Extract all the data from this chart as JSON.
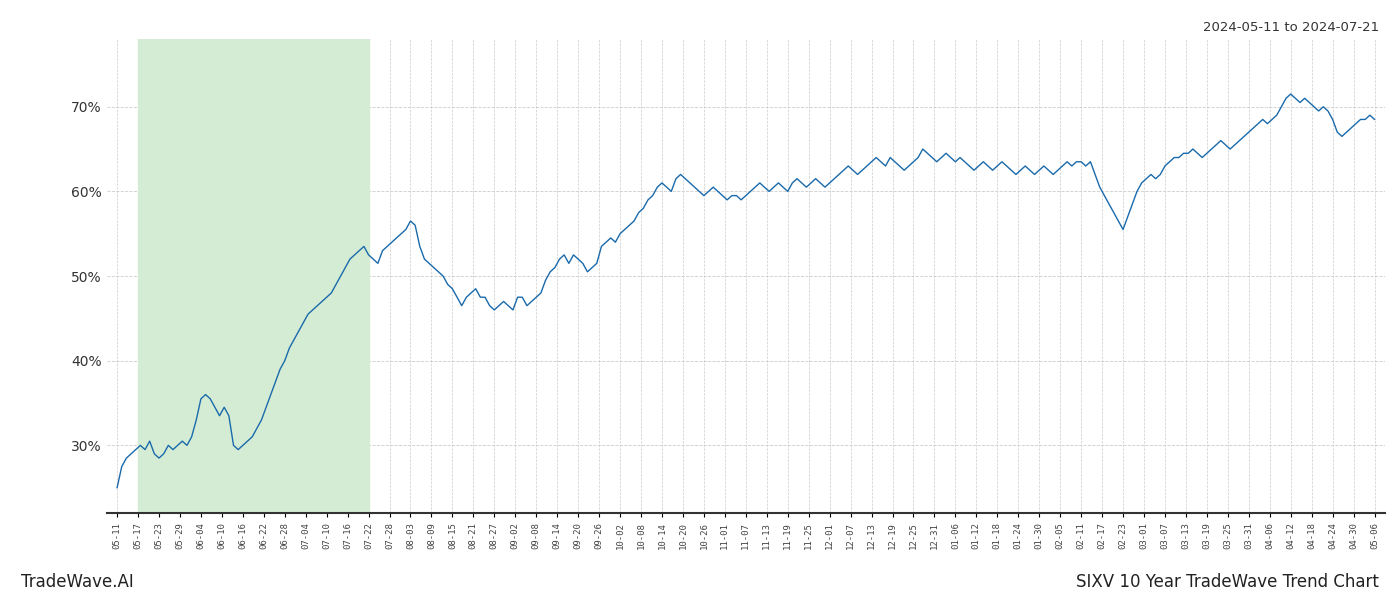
{
  "title_top_right": "2024-05-11 to 2024-07-21",
  "bottom_left": "TradeWave.AI",
  "bottom_right": "SIXV 10 Year TradeWave Trend Chart",
  "y_ticks": [
    30,
    40,
    50,
    60,
    70
  ],
  "y_tick_labels": [
    "30%",
    "40%",
    "50%",
    "60%",
    "70%"
  ],
  "ylim": [
    22,
    78
  ],
  "shaded_color": "#d4ecd4",
  "line_color": "#1a6aab",
  "background_color": "#ffffff",
  "grid_color": "#cccccc",
  "x_labels": [
    "05-11",
    "05-17",
    "05-23",
    "05-29",
    "06-04",
    "06-10",
    "06-16",
    "06-22",
    "06-28",
    "07-04",
    "07-10",
    "07-16",
    "07-22",
    "07-28",
    "08-03",
    "08-09",
    "08-15",
    "08-21",
    "08-27",
    "09-02",
    "09-08",
    "09-14",
    "09-20",
    "09-26",
    "10-02",
    "10-08",
    "10-14",
    "10-20",
    "10-26",
    "11-01",
    "11-07",
    "11-13",
    "11-19",
    "11-25",
    "12-01",
    "12-07",
    "12-13",
    "12-19",
    "12-25",
    "12-31",
    "01-06",
    "01-12",
    "01-18",
    "01-24",
    "01-30",
    "02-05",
    "02-11",
    "02-17",
    "02-23",
    "03-01",
    "03-07",
    "03-13",
    "03-19",
    "03-25",
    "03-31",
    "04-06",
    "04-12",
    "04-18",
    "04-24",
    "04-30",
    "05-06"
  ],
  "shade_start_label": "05-17",
  "shade_end_label": "07-22",
  "y_values": [
    25.0,
    27.5,
    28.5,
    29.0,
    29.5,
    30.0,
    29.5,
    30.5,
    29.0,
    28.5,
    29.0,
    30.0,
    29.5,
    30.0,
    30.5,
    30.0,
    31.0,
    33.0,
    35.5,
    36.0,
    35.5,
    34.5,
    33.5,
    34.5,
    33.5,
    30.0,
    29.5,
    30.0,
    30.5,
    31.0,
    32.0,
    33.0,
    34.5,
    36.0,
    37.5,
    39.0,
    40.0,
    41.5,
    42.5,
    43.5,
    44.5,
    45.5,
    46.0,
    46.5,
    47.0,
    47.5,
    48.0,
    49.0,
    50.0,
    51.0,
    52.0,
    52.5,
    53.0,
    53.5,
    52.5,
    52.0,
    51.5,
    53.0,
    53.5,
    54.0,
    54.5,
    55.0,
    55.5,
    56.5,
    56.0,
    53.5,
    52.0,
    51.5,
    51.0,
    50.5,
    50.0,
    49.0,
    48.5,
    47.5,
    46.5,
    47.5,
    48.0,
    48.5,
    47.5,
    47.5,
    46.5,
    46.0,
    46.5,
    47.0,
    46.5,
    46.0,
    47.5,
    47.5,
    46.5,
    47.0,
    47.5,
    48.0,
    49.5,
    50.5,
    51.0,
    52.0,
    52.5,
    51.5,
    52.5,
    52.0,
    51.5,
    50.5,
    51.0,
    51.5,
    53.5,
    54.0,
    54.5,
    54.0,
    55.0,
    55.5,
    56.0,
    56.5,
    57.5,
    58.0,
    59.0,
    59.5,
    60.5,
    61.0,
    60.5,
    60.0,
    61.5,
    62.0,
    61.5,
    61.0,
    60.5,
    60.0,
    59.5,
    60.0,
    60.5,
    60.0,
    59.5,
    59.0,
    59.5,
    59.5,
    59.0,
    59.5,
    60.0,
    60.5,
    61.0,
    60.5,
    60.0,
    60.5,
    61.0,
    60.5,
    60.0,
    61.0,
    61.5,
    61.0,
    60.5,
    61.0,
    61.5,
    61.0,
    60.5,
    61.0,
    61.5,
    62.0,
    62.5,
    63.0,
    62.5,
    62.0,
    62.5,
    63.0,
    63.5,
    64.0,
    63.5,
    63.0,
    64.0,
    63.5,
    63.0,
    62.5,
    63.0,
    63.5,
    64.0,
    65.0,
    64.5,
    64.0,
    63.5,
    64.0,
    64.5,
    64.0,
    63.5,
    64.0,
    63.5,
    63.0,
    62.5,
    63.0,
    63.5,
    63.0,
    62.5,
    63.0,
    63.5,
    63.0,
    62.5,
    62.0,
    62.5,
    63.0,
    62.5,
    62.0,
    62.5,
    63.0,
    62.5,
    62.0,
    62.5,
    63.0,
    63.5,
    63.0,
    63.5,
    63.5,
    63.0,
    63.5,
    62.0,
    60.5,
    59.5,
    58.5,
    57.5,
    56.5,
    55.5,
    57.0,
    58.5,
    60.0,
    61.0,
    61.5,
    62.0,
    61.5,
    62.0,
    63.0,
    63.5,
    64.0,
    64.0,
    64.5,
    64.5,
    65.0,
    64.5,
    64.0,
    64.5,
    65.0,
    65.5,
    66.0,
    65.5,
    65.0,
    65.5,
    66.0,
    66.5,
    67.0,
    67.5,
    68.0,
    68.5,
    68.0,
    68.5,
    69.0,
    70.0,
    71.0,
    71.5,
    71.0,
    70.5,
    71.0,
    70.5,
    70.0,
    69.5,
    70.0,
    69.5,
    68.5,
    67.0,
    66.5,
    67.0,
    67.5,
    68.0,
    68.5,
    68.5,
    69.0,
    68.5
  ]
}
